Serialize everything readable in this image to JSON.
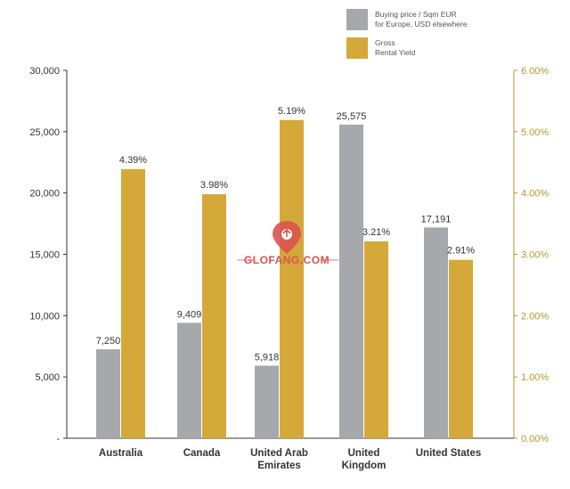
{
  "chart_data": {
    "type": "bar",
    "categories": [
      [
        "Australia"
      ],
      [
        "Canada"
      ],
      [
        "United Arab",
        "Emirates"
      ],
      [
        "United",
        "Kingdom"
      ],
      [
        "United States"
      ]
    ],
    "series": [
      {
        "name": [
          "Buying price / Sqm EUR",
          "for Europe, USD elsewhere"
        ],
        "axis": "left",
        "color": "#a7a8ab",
        "values": [
          7250,
          9409,
          5918,
          25575,
          17191
        ],
        "labels": [
          "7,250",
          "9,409",
          "5,918",
          "25,575",
          "17,191"
        ]
      },
      {
        "name": [
          "Gross",
          "Rental Yield"
        ],
        "axis": "right",
        "color": "#d4a93a",
        "values": [
          4.39,
          3.98,
          5.19,
          3.21,
          2.91
        ],
        "labels": [
          "4.39%",
          "3.98%",
          "5.19%",
          "3.21%",
          "2.91%"
        ]
      }
    ],
    "y_left": {
      "ylim": [
        0,
        30000
      ],
      "ticks": [
        0,
        5000,
        10000,
        15000,
        20000,
        25000,
        30000
      ],
      "tick_labels": [
        "-",
        "5,000",
        "10,000",
        "15,000",
        "20,000",
        "25,000",
        "30,000"
      ]
    },
    "y_right": {
      "ylim": [
        0,
        6
      ],
      "ticks": [
        0,
        1,
        2,
        3,
        4,
        5,
        6
      ],
      "tick_labels": [
        "0.00%",
        "1.00%",
        "2.00%",
        "3.00%",
        "4.00%",
        "5.00%",
        "6.00%"
      ],
      "color": "#b8962e"
    },
    "legend_position": "top-right",
    "grid": false
  },
  "watermark": {
    "text": "GLOFANG.COM"
  }
}
